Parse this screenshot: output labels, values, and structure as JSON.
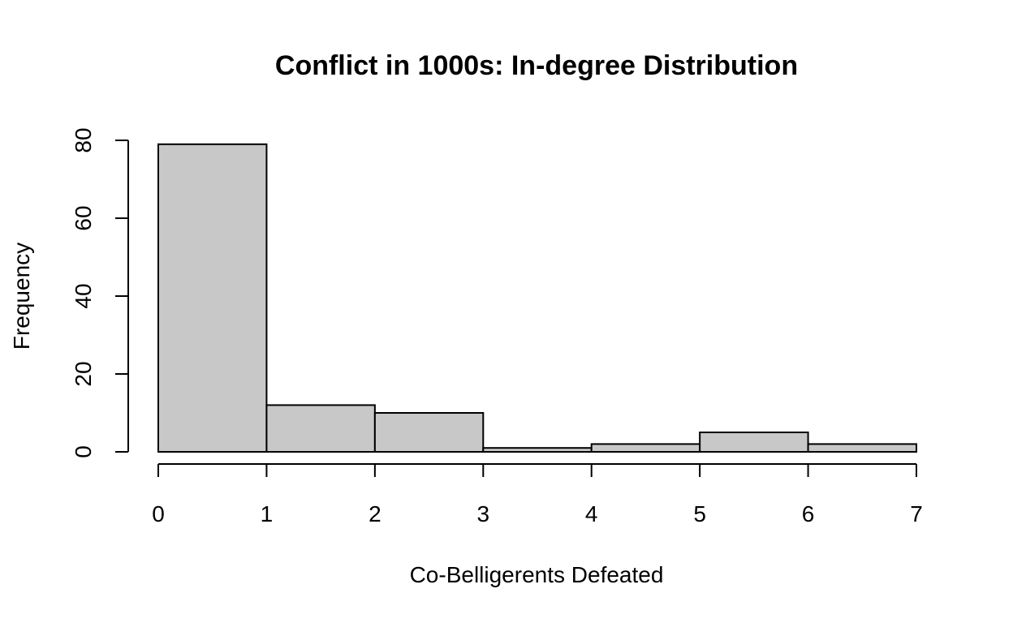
{
  "chart_data": {
    "type": "bar",
    "title": "Conflict in 1000s: In-degree Distribution",
    "xlabel": "Co-Belligerents Defeated",
    "ylabel": "Frequency",
    "bins": [
      {
        "start": 0,
        "end": 1,
        "count": 79
      },
      {
        "start": 1,
        "end": 2,
        "count": 12
      },
      {
        "start": 2,
        "end": 3,
        "count": 10
      },
      {
        "start": 3,
        "end": 4,
        "count": 1
      },
      {
        "start": 4,
        "end": 5,
        "count": 2
      },
      {
        "start": 5,
        "end": 6,
        "count": 5
      },
      {
        "start": 6,
        "end": 7,
        "count": 2
      }
    ],
    "xlim": [
      0,
      7
    ],
    "ylim": [
      0,
      80
    ],
    "x_ticks": [
      "0",
      "1",
      "2",
      "3",
      "4",
      "5",
      "6",
      "7"
    ],
    "y_ticks": [
      "0",
      "20",
      "40",
      "60",
      "80"
    ],
    "grid": false,
    "legend": "none",
    "colors": {
      "bar_fill": "#c8c8c8",
      "bar_stroke": "#000000"
    }
  }
}
